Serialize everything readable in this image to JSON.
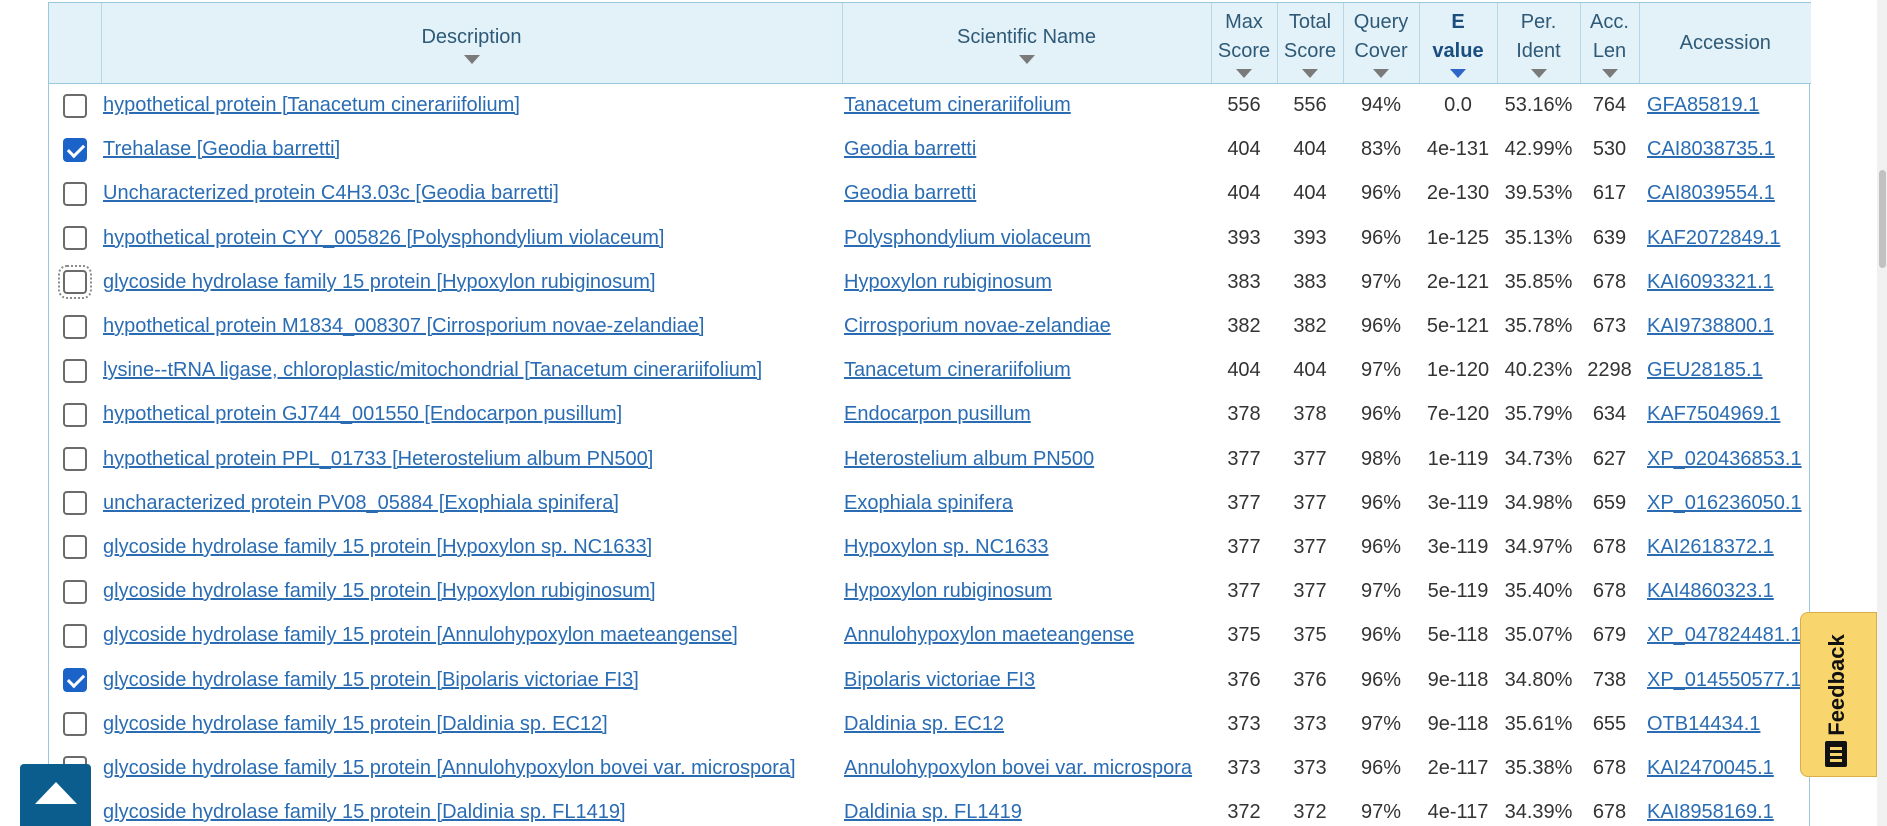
{
  "table": {
    "headers": {
      "description": "Description",
      "scientific_name": "Scientific Name",
      "max_score": [
        "Max",
        "Score"
      ],
      "total_score": [
        "Total",
        "Score"
      ],
      "query_cover": [
        "Query",
        "Cover"
      ],
      "e_value": [
        "E",
        "value"
      ],
      "per_ident": [
        "Per.",
        "Ident"
      ],
      "acc_len": [
        "Acc.",
        "Len"
      ],
      "accession": "Accession"
    },
    "sorted_column": "e_value",
    "rows": [
      {
        "checked": false,
        "focused": false,
        "description": "hypothetical protein [Tanacetum cinerariifolium]",
        "scientific_name": "Tanacetum cinerariifolium",
        "max_score": "556",
        "total_score": "556",
        "query_cover": "94%",
        "e_value": "0.0",
        "per_ident": "53.16%",
        "acc_len": "764",
        "accession": "GFA85819.1"
      },
      {
        "checked": true,
        "focused": false,
        "description": "Trehalase [Geodia barretti]",
        "scientific_name": "Geodia barretti",
        "max_score": "404",
        "total_score": "404",
        "query_cover": "83%",
        "e_value": "4e-131",
        "per_ident": "42.99%",
        "acc_len": "530",
        "accession": "CAI8038735.1"
      },
      {
        "checked": false,
        "focused": false,
        "description": "Uncharacterized protein C4H3.03c [Geodia barretti]",
        "scientific_name": "Geodia barretti",
        "max_score": "404",
        "total_score": "404",
        "query_cover": "96%",
        "e_value": "2e-130",
        "per_ident": "39.53%",
        "acc_len": "617",
        "accession": "CAI8039554.1"
      },
      {
        "checked": false,
        "focused": false,
        "description": "hypothetical protein CYY_005826 [Polysphondylium violaceum]",
        "scientific_name": "Polysphondylium violaceum",
        "max_score": "393",
        "total_score": "393",
        "query_cover": "96%",
        "e_value": "1e-125",
        "per_ident": "35.13%",
        "acc_len": "639",
        "accession": "KAF2072849.1"
      },
      {
        "checked": false,
        "focused": true,
        "description": "glycoside hydrolase family 15 protein [Hypoxylon rubiginosum]",
        "scientific_name": "Hypoxylon rubiginosum",
        "max_score": "383",
        "total_score": "383",
        "query_cover": "97%",
        "e_value": "2e-121",
        "per_ident": "35.85%",
        "acc_len": "678",
        "accession": "KAI6093321.1"
      },
      {
        "checked": false,
        "focused": false,
        "description": "hypothetical protein M1834_008307 [Cirrosporium novae-zelandiae]",
        "scientific_name": "Cirrosporium novae-zelandiae",
        "max_score": "382",
        "total_score": "382",
        "query_cover": "96%",
        "e_value": "5e-121",
        "per_ident": "35.78%",
        "acc_len": "673",
        "accession": "KAI9738800.1"
      },
      {
        "checked": false,
        "focused": false,
        "description": "lysine--tRNA ligase, chloroplastic/mitochondrial [Tanacetum cinerariifolium]",
        "scientific_name": "Tanacetum cinerariifolium",
        "max_score": "404",
        "total_score": "404",
        "query_cover": "97%",
        "e_value": "1e-120",
        "per_ident": "40.23%",
        "acc_len": "2298",
        "accession": "GEU28185.1"
      },
      {
        "checked": false,
        "focused": false,
        "description": "hypothetical protein GJ744_001550 [Endocarpon pusillum]",
        "scientific_name": "Endocarpon pusillum",
        "max_score": "378",
        "total_score": "378",
        "query_cover": "96%",
        "e_value": "7e-120",
        "per_ident": "35.79%",
        "acc_len": "634",
        "accession": "KAF7504969.1"
      },
      {
        "checked": false,
        "focused": false,
        "description": "hypothetical protein PPL_01733 [Heterostelium album PN500]",
        "scientific_name": "Heterostelium album PN500",
        "max_score": "377",
        "total_score": "377",
        "query_cover": "98%",
        "e_value": "1e-119",
        "per_ident": "34.73%",
        "acc_len": "627",
        "accession": "XP_020436853.1"
      },
      {
        "checked": false,
        "focused": false,
        "description": "uncharacterized protein PV08_05884 [Exophiala spinifera]",
        "scientific_name": "Exophiala spinifera",
        "max_score": "377",
        "total_score": "377",
        "query_cover": "96%",
        "e_value": "3e-119",
        "per_ident": "34.98%",
        "acc_len": "659",
        "accession": "XP_016236050.1"
      },
      {
        "checked": false,
        "focused": false,
        "description": "glycoside hydrolase family 15 protein [Hypoxylon sp. NC1633]",
        "scientific_name": "Hypoxylon sp. NC1633",
        "max_score": "377",
        "total_score": "377",
        "query_cover": "96%",
        "e_value": "3e-119",
        "per_ident": "34.97%",
        "acc_len": "678",
        "accession": "KAI2618372.1"
      },
      {
        "checked": false,
        "focused": false,
        "description": "glycoside hydrolase family 15 protein [Hypoxylon rubiginosum]",
        "scientific_name": "Hypoxylon rubiginosum",
        "max_score": "377",
        "total_score": "377",
        "query_cover": "97%",
        "e_value": "5e-119",
        "per_ident": "35.40%",
        "acc_len": "678",
        "accession": "KAI4860323.1"
      },
      {
        "checked": false,
        "focused": false,
        "description": "glycoside hydrolase family 15 protein [Annulohypoxylon maeteangense]",
        "scientific_name": "Annulohypoxylon maeteangense",
        "max_score": "375",
        "total_score": "375",
        "query_cover": "96%",
        "e_value": "5e-118",
        "per_ident": "35.07%",
        "acc_len": "679",
        "accession": "XP_047824481.1"
      },
      {
        "checked": true,
        "focused": false,
        "description": "glycoside hydrolase family 15 protein [Bipolaris victoriae FI3]",
        "scientific_name": "Bipolaris victoriae FI3",
        "max_score": "376",
        "total_score": "376",
        "query_cover": "96%",
        "e_value": "9e-118",
        "per_ident": "34.80%",
        "acc_len": "738",
        "accession": "XP_014550577.1"
      },
      {
        "checked": false,
        "focused": false,
        "description": "glycoside hydrolase family 15 protein [Daldinia sp. EC12]",
        "scientific_name": "Daldinia sp. EC12",
        "max_score": "373",
        "total_score": "373",
        "query_cover": "97%",
        "e_value": "9e-118",
        "per_ident": "35.61%",
        "acc_len": "655",
        "accession": "OTB14434.1"
      },
      {
        "checked": false,
        "focused": false,
        "description": "glycoside hydrolase family 15 protein [Annulohypoxylon bovei var. microspora]",
        "scientific_name": "Annulohypoxylon bovei var. microspora",
        "max_score": "373",
        "total_score": "373",
        "query_cover": "96%",
        "e_value": "2e-117",
        "per_ident": "35.38%",
        "acc_len": "678",
        "accession": "KAI2470045.1"
      },
      {
        "checked": false,
        "focused": false,
        "description": "glycoside hydrolase family 15 protein [Daldinia sp. FL1419]",
        "scientific_name": "Daldinia sp. FL1419",
        "max_score": "372",
        "total_score": "372",
        "query_cover": "97%",
        "e_value": "4e-117",
        "per_ident": "34.39%",
        "acc_len": "678",
        "accession": "KAI8958169.1"
      }
    ]
  },
  "feedback": {
    "label": "Feedback",
    "icon": "feedback-icon"
  },
  "back_to_top": {
    "icon": "chevron-up-icon"
  },
  "colors": {
    "header_bg": "#e3f1f8",
    "link": "#2a6cb3",
    "checkbox_checked": "#1b63c9",
    "feedback_bg": "#f9d56e",
    "back_to_top_bg": "#0a5d8c"
  }
}
